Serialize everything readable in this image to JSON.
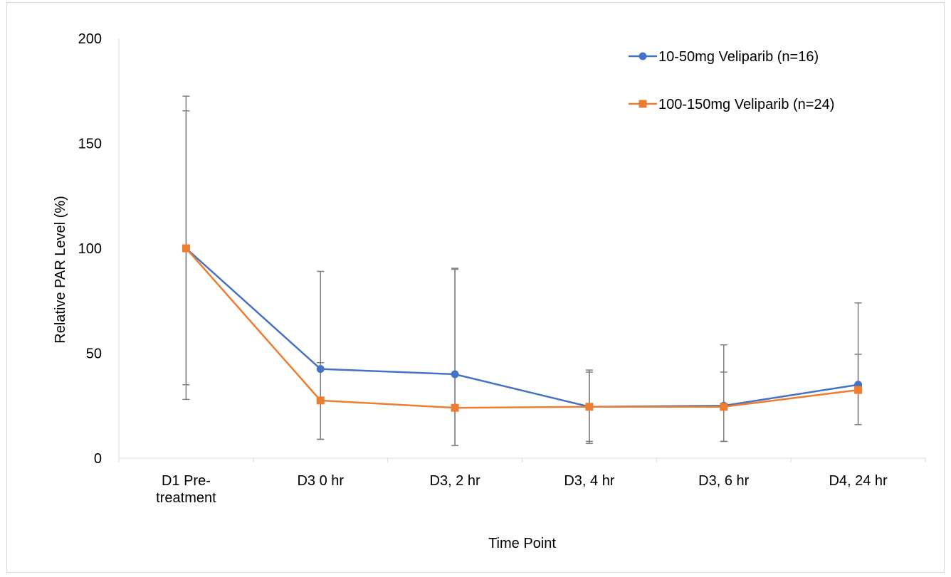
{
  "chart_data": {
    "type": "line",
    "title": "",
    "xlabel": "Time Point",
    "ylabel": "Relative PAR Level (%)",
    "ylim": [
      0,
      200
    ],
    "yticks": [
      0,
      50,
      100,
      150,
      200
    ],
    "grid": false,
    "legend_position": "top-right",
    "categories": [
      [
        "D1 Pre-",
        "treatment"
      ],
      [
        "D3 0 hr"
      ],
      [
        "D3, 2 hr"
      ],
      [
        "D3, 4 hr"
      ],
      [
        "D3, 6 hr"
      ],
      [
        "D4, 24 hr"
      ]
    ],
    "series": [
      {
        "name": "10-50mg Veliparib (n=16)",
        "color": "#4472C4",
        "marker": "circle",
        "values": [
          100,
          42.5,
          40,
          24.5,
          25,
          35
        ],
        "error_low": [
          35,
          9,
          6,
          8,
          8,
          16
        ],
        "error_high": [
          165.5,
          89,
          90.5,
          41,
          54,
          74
        ]
      },
      {
        "name": "100-150mg Veliparib (n=24)",
        "color": "#ED7D31",
        "marker": "square",
        "values": [
          100,
          27.5,
          24,
          24.5,
          24.5,
          32.5
        ],
        "error_low": [
          28,
          9,
          6,
          7,
          8,
          16
        ],
        "error_high": [
          172.5,
          45.5,
          90,
          42,
          41,
          49.5
        ]
      }
    ],
    "error_bar_color": "#7F7F7F"
  }
}
